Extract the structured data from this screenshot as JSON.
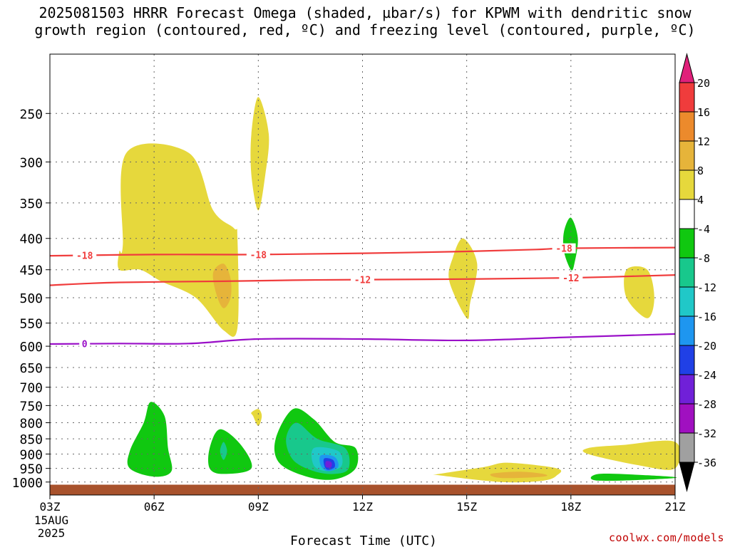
{
  "title": {
    "line1": "2025081503 HRRR Forecast Omega (shaded, µbar/s) for KPWM with dendritic snow",
    "line2": "growth region (contoured, red, ºC) and freezing level (contoured, purple, ºC)"
  },
  "credit": "coolwx.com/models",
  "chart_data": {
    "type": "heatmap",
    "title": "2025081503 HRRR Forecast Omega (shaded, µbar/s) for KPWM with dendritic snow growth region (contoured, red, ºC) and freezing level (contoured, purple, ºC)",
    "xlabel": "Forecast Time (UTC)",
    "ylabel": "",
    "x_ticks": [
      3,
      6,
      9,
      12,
      15,
      18,
      21
    ],
    "x_tick_labels": [
      "03Z",
      "06Z",
      "09Z",
      "12Z",
      "15Z",
      "18Z",
      "21Z"
    ],
    "x_date_label": [
      "15AUG",
      "2025"
    ],
    "xlim": [
      3,
      21
    ],
    "y_ticks": [
      250,
      300,
      350,
      400,
      450,
      500,
      550,
      600,
      650,
      700,
      750,
      800,
      850,
      900,
      950,
      1000
    ],
    "ylim": [
      1050,
      200
    ],
    "y_scale": "log-pressure",
    "grid": true,
    "colorbar": {
      "labels": [
        "20",
        "16",
        "12",
        "8",
        "4",
        "-4",
        "-8",
        "-12",
        "-16",
        "-20",
        "-24",
        "-28",
        "-32",
        "-36"
      ],
      "bins": [
        {
          "range": [
            16,
            20
          ],
          "color": "#f03c3c"
        },
        {
          "range": [
            12,
            16
          ],
          "color": "#ec8a2c"
        },
        {
          "range": [
            8,
            12
          ],
          "color": "#e6b43a"
        },
        {
          "range": [
            4,
            8
          ],
          "color": "#e6d83c"
        },
        {
          "range": [
            -4,
            4
          ],
          "color": "#ffffff"
        },
        {
          "range": [
            -8,
            -4
          ],
          "color": "#10c810"
        },
        {
          "range": [
            -12,
            -8
          ],
          "color": "#18c88c"
        },
        {
          "range": [
            -16,
            -12
          ],
          "color": "#20c8c8"
        },
        {
          "range": [
            -20,
            -16
          ],
          "color": "#1e96f0"
        },
        {
          "range": [
            -24,
            -20
          ],
          "color": "#2040e6"
        },
        {
          "range": [
            -28,
            -24
          ],
          "color": "#7020d8"
        },
        {
          "range": [
            -32,
            -28
          ],
          "color": "#a010c0"
        },
        {
          "range": [
            -36,
            -32
          ],
          "color": "#a0a0a0"
        }
      ],
      "over_color": "#e0207a",
      "under_color": "#000000"
    },
    "shaded_regions": [
      {
        "omega": 5,
        "color": "#e6d83c",
        "points": [
          [
            5.2,
            290
          ],
          [
            7.0,
            290
          ],
          [
            7.7,
            360
          ],
          [
            8.3,
            385
          ],
          [
            8.4,
            400
          ],
          [
            8.4,
            560
          ],
          [
            8.0,
            565
          ],
          [
            7.2,
            500
          ],
          [
            6.2,
            470
          ],
          [
            5.6,
            450
          ],
          [
            5.0,
            450
          ],
          [
            5.0,
            420
          ],
          [
            5.1,
            410
          ]
        ]
      },
      {
        "omega": 9,
        "color": "#e6b43a",
        "points": [
          [
            8.0,
            440
          ],
          [
            8.2,
            465
          ],
          [
            8.2,
            500
          ],
          [
            8.0,
            520
          ],
          [
            7.8,
            495
          ],
          [
            7.7,
            455
          ]
        ]
      },
      {
        "omega": 5,
        "color": "#e6d83c",
        "points": [
          [
            9.0,
            235
          ],
          [
            9.3,
            270
          ],
          [
            9.2,
            315
          ],
          [
            9.0,
            360
          ],
          [
            8.8,
            315
          ],
          [
            8.8,
            270
          ]
        ]
      },
      {
        "omega": 5,
        "color": "#e6d83c",
        "points": [
          [
            9.0,
            760
          ],
          [
            9.1,
            780
          ],
          [
            9.0,
            810
          ],
          [
            8.85,
            780
          ],
          [
            8.8,
            770
          ]
        ]
      },
      {
        "omega": 5,
        "color": "#e6d83c",
        "points": [
          [
            14.9,
            400
          ],
          [
            15.3,
            440
          ],
          [
            15.1,
            510
          ],
          [
            15.0,
            540
          ],
          [
            14.5,
            470
          ],
          [
            14.6,
            430
          ]
        ]
      },
      {
        "omega": 5,
        "color": "#e6d83c",
        "points": [
          [
            19.6,
            450
          ],
          [
            20.2,
            450
          ],
          [
            20.4,
            500
          ],
          [
            20.2,
            540
          ],
          [
            19.6,
            500
          ]
        ]
      },
      {
        "omega": 5,
        "color": "#e6d83c",
        "points": [
          [
            18.5,
            880
          ],
          [
            19.5,
            870
          ],
          [
            21,
            860
          ],
          [
            21,
            950
          ],
          [
            20,
            940
          ],
          [
            18.5,
            900
          ]
        ]
      },
      {
        "omega": 5,
        "color": "#e6d83c",
        "points": [
          [
            14.2,
            970
          ],
          [
            15.5,
            945
          ],
          [
            16.2,
            930
          ],
          [
            17.6,
            950
          ],
          [
            17.6,
            975
          ],
          [
            17.2,
            995
          ],
          [
            16,
            1000
          ],
          [
            14.2,
            975
          ]
        ]
      },
      {
        "omega": 9,
        "color": "#e6b43a",
        "points": [
          [
            15.7,
            970
          ],
          [
            16.5,
            962
          ],
          [
            17.2,
            970
          ],
          [
            17.2,
            980
          ],
          [
            16.0,
            985
          ]
        ]
      },
      {
        "omega": -6,
        "color": "#10c810",
        "points": [
          [
            5.9,
            740
          ],
          [
            6.3,
            780
          ],
          [
            6.4,
            880
          ],
          [
            6.5,
            960
          ],
          [
            6.0,
            980
          ],
          [
            5.3,
            950
          ],
          [
            5.3,
            890
          ],
          [
            5.7,
            800
          ]
        ]
      },
      {
        "omega": -6,
        "color": "#10c810",
        "points": [
          [
            7.9,
            820
          ],
          [
            8.5,
            870
          ],
          [
            8.8,
            950
          ],
          [
            8.0,
            970
          ],
          [
            7.6,
            950
          ],
          [
            7.6,
            880
          ]
        ]
      },
      {
        "omega": -10,
        "color": "#18c88c",
        "points": [
          [
            8.0,
            860
          ],
          [
            8.1,
            890
          ],
          [
            8.0,
            920
          ],
          [
            7.9,
            890
          ]
        ]
      },
      {
        "omega": -6,
        "color": "#10c810",
        "points": [
          [
            10.0,
            760
          ],
          [
            10.6,
            790
          ],
          [
            11.2,
            860
          ],
          [
            11.8,
            880
          ],
          [
            11.8,
            950
          ],
          [
            11.2,
            990
          ],
          [
            10.4,
            980
          ],
          [
            9.6,
            930
          ],
          [
            9.5,
            850
          ]
        ]
      },
      {
        "omega": -10,
        "color": "#18c88c",
        "points": [
          [
            10.1,
            800
          ],
          [
            10.7,
            850
          ],
          [
            11.5,
            880
          ],
          [
            11.6,
            950
          ],
          [
            11.2,
            970
          ],
          [
            10.6,
            960
          ],
          [
            10.0,
            920
          ],
          [
            9.8,
            850
          ]
        ]
      },
      {
        "omega": -14,
        "color": "#20c8c8",
        "points": [
          [
            10.6,
            880
          ],
          [
            11.3,
            890
          ],
          [
            11.4,
            940
          ],
          [
            11.0,
            960
          ],
          [
            10.6,
            940
          ]
        ]
      },
      {
        "omega": -18,
        "color": "#1e96f0",
        "points": [
          [
            10.8,
            905
          ],
          [
            11.2,
            910
          ],
          [
            11.3,
            945
          ],
          [
            11.0,
            960
          ],
          [
            10.8,
            940
          ]
        ]
      },
      {
        "omega": -22,
        "color": "#2040e6",
        "points": [
          [
            10.9,
            915
          ],
          [
            11.15,
            920
          ],
          [
            11.2,
            945
          ],
          [
            11.0,
            955
          ],
          [
            10.9,
            940
          ]
        ]
      },
      {
        "omega": -26,
        "color": "#7020d8",
        "points": [
          [
            10.95,
            925
          ],
          [
            11.1,
            928
          ],
          [
            11.1,
            945
          ],
          [
            10.95,
            945
          ]
        ]
      },
      {
        "omega": -6,
        "color": "#10c810",
        "points": [
          [
            18.0,
            370
          ],
          [
            18.2,
            400
          ],
          [
            18.1,
            440
          ],
          [
            18.0,
            450
          ],
          [
            17.8,
            420
          ],
          [
            17.8,
            390
          ]
        ]
      },
      {
        "omega": -6,
        "color": "#10c810",
        "points": [
          [
            18.8,
            970
          ],
          [
            20.2,
            975
          ],
          [
            21.0,
            985
          ],
          [
            18.8,
            995
          ]
        ]
      }
    ],
    "contours": [
      {
        "name": "-18",
        "color": "#f03c3c",
        "label": "-18",
        "label_x": [
          4.0,
          9.0,
          17.8
        ],
        "points": [
          [
            3,
            427
          ],
          [
            6,
            425
          ],
          [
            9,
            425
          ],
          [
            12,
            423
          ],
          [
            15,
            420
          ],
          [
            17,
            417
          ],
          [
            18,
            415
          ],
          [
            21,
            414
          ]
        ]
      },
      {
        "name": "-12",
        "color": "#f03c3c",
        "label": "-12",
        "label_x": [
          12.0,
          18.0
        ],
        "points": [
          [
            3,
            477
          ],
          [
            5,
            472
          ],
          [
            8,
            470
          ],
          [
            10,
            468
          ],
          [
            12,
            467
          ],
          [
            15,
            466
          ],
          [
            18,
            464
          ],
          [
            21,
            459
          ]
        ]
      },
      {
        "name": "0",
        "color": "#9a10c8",
        "label": "0",
        "label_x": [
          4.0
        ],
        "points": [
          [
            3,
            595
          ],
          [
            5,
            594
          ],
          [
            7,
            594
          ],
          [
            9,
            584
          ],
          [
            12,
            584
          ],
          [
            15,
            587
          ],
          [
            18,
            580
          ],
          [
            21,
            573
          ]
        ]
      }
    ],
    "terrain": {
      "color": "#a8522c",
      "top": 1010
    }
  }
}
